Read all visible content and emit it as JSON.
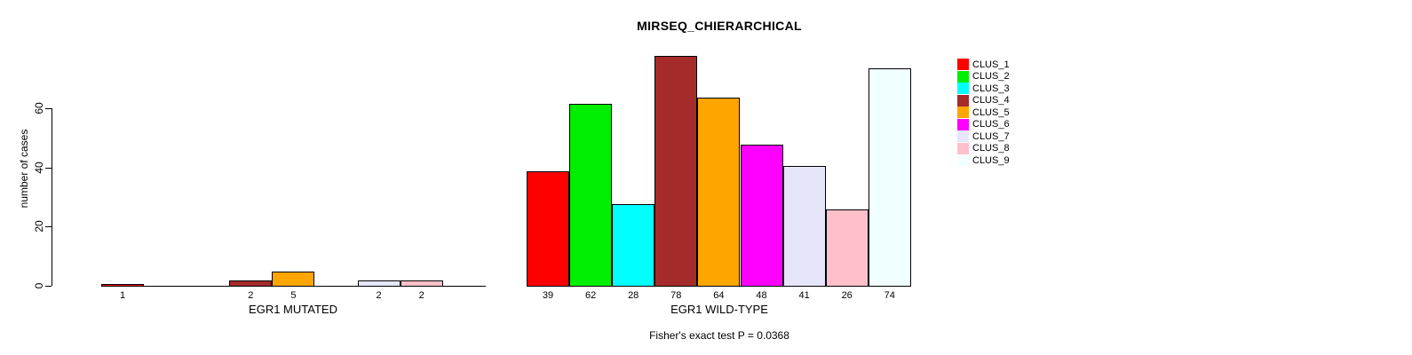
{
  "title": "MIRSEQ_CHIERARCHICAL",
  "footer": "Fisher's exact test P = 0.0368",
  "y_axis": {
    "label": "number of cases",
    "ticks": [
      0,
      20,
      40,
      60
    ]
  },
  "legend": {
    "items": [
      {
        "label": "CLUS_1",
        "color": "#FF0000"
      },
      {
        "label": "CLUS_2",
        "color": "#00EE00"
      },
      {
        "label": "CLUS_3",
        "color": "#00FFFF"
      },
      {
        "label": "CLUS_4",
        "color": "#A52A2A"
      },
      {
        "label": "CLUS_5",
        "color": "#FFA500"
      },
      {
        "label": "CLUS_6",
        "color": "#FF00FF"
      },
      {
        "label": "CLUS_7",
        "color": "#E6E6FA"
      },
      {
        "label": "CLUS_8",
        "color": "#FFC0CB"
      },
      {
        "label": "CLUS_9",
        "color": "#F0FFFF"
      }
    ]
  },
  "chart_data": {
    "type": "bar",
    "title": "MIRSEQ_CHIERARCHICAL",
    "ylabel": "number of cases",
    "ylim": [
      0,
      80
    ],
    "yticks": [
      0,
      20,
      40,
      60
    ],
    "grid": false,
    "legend_position": "right-outside",
    "annotation": "Fisher's exact test P = 0.0368",
    "panels": [
      {
        "xlabel": "EGR1 MUTATED",
        "slots": 9,
        "bars": [
          {
            "slot": 1,
            "cluster": "CLUS_1",
            "value": 1,
            "color": "#FF0000"
          },
          {
            "slot": 4,
            "cluster": "CLUS_4",
            "value": 2,
            "color": "#A52A2A"
          },
          {
            "slot": 5,
            "cluster": "CLUS_5",
            "value": 5,
            "color": "#FFA500"
          },
          {
            "slot": 7,
            "cluster": "CLUS_7",
            "value": 2,
            "color": "#E6E6FA"
          },
          {
            "slot": 8,
            "cluster": "CLUS_8",
            "value": 2,
            "color": "#FFC0CB"
          }
        ]
      },
      {
        "xlabel": "EGR1 WILD-TYPE",
        "slots": 9,
        "bars": [
          {
            "slot": 1,
            "cluster": "CLUS_1",
            "value": 39,
            "color": "#FF0000"
          },
          {
            "slot": 2,
            "cluster": "CLUS_2",
            "value": 62,
            "color": "#00EE00"
          },
          {
            "slot": 3,
            "cluster": "CLUS_3",
            "value": 28,
            "color": "#00FFFF"
          },
          {
            "slot": 4,
            "cluster": "CLUS_4",
            "value": 78,
            "color": "#A52A2A"
          },
          {
            "slot": 5,
            "cluster": "CLUS_5",
            "value": 64,
            "color": "#FFA500"
          },
          {
            "slot": 6,
            "cluster": "CLUS_6",
            "value": 48,
            "color": "#FF00FF"
          },
          {
            "slot": 7,
            "cluster": "CLUS_7",
            "value": 41,
            "color": "#E6E6FA"
          },
          {
            "slot": 8,
            "cluster": "CLUS_8",
            "value": 26,
            "color": "#FFC0CB"
          },
          {
            "slot": 9,
            "cluster": "CLUS_9",
            "value": 74,
            "color": "#F0FFFF"
          }
        ]
      }
    ]
  }
}
